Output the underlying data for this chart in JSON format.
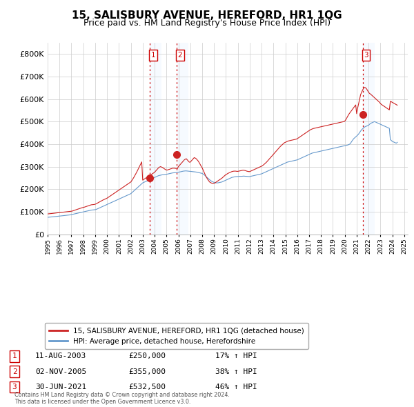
{
  "title": "15, SALISBURY AVENUE, HEREFORD, HR1 1QG",
  "subtitle": "Price paid vs. HM Land Registry's House Price Index (HPI)",
  "ylim": [
    0,
    850000
  ],
  "yticks": [
    0,
    100000,
    200000,
    300000,
    400000,
    500000,
    600000,
    700000,
    800000
  ],
  "ytick_labels": [
    "£0",
    "£100K",
    "£200K",
    "£300K",
    "£400K",
    "£500K",
    "£600K",
    "£700K",
    "£800K"
  ],
  "sale_year_nums": [
    2003.6,
    2005.83,
    2021.5
  ],
  "sale_prices": [
    250000,
    355000,
    532500
  ],
  "sale_labels": [
    "1",
    "2",
    "3"
  ],
  "vline_color": "#cc0000",
  "vline_shade_color": "#ddeeff",
  "red_line_color": "#cc2222",
  "blue_line_color": "#6699cc",
  "legend_label_red": "15, SALISBURY AVENUE, HEREFORD, HR1 1QG (detached house)",
  "legend_label_blue": "HPI: Average price, detached house, Herefordshire",
  "table_entries": [
    {
      "num": "1",
      "date": "11-AUG-2003",
      "price": "£250,000",
      "change": "17% ↑ HPI"
    },
    {
      "num": "2",
      "date": "02-NOV-2005",
      "price": "£355,000",
      "change": "38% ↑ HPI"
    },
    {
      "num": "3",
      "date": "30-JUN-2021",
      "price": "£532,500",
      "change": "46% ↑ HPI"
    }
  ],
  "footnote": "Contains HM Land Registry data © Crown copyright and database right 2024.\nThis data is licensed under the Open Government Licence v3.0.",
  "background_color": "#ffffff",
  "grid_color": "#cccccc",
  "hpi_years": [
    1995.0,
    1995.083,
    1995.167,
    1995.25,
    1995.333,
    1995.417,
    1995.5,
    1995.583,
    1995.667,
    1995.75,
    1995.833,
    1995.917,
    1996.0,
    1996.083,
    1996.167,
    1996.25,
    1996.333,
    1996.417,
    1996.5,
    1996.583,
    1996.667,
    1996.75,
    1996.833,
    1996.917,
    1997.0,
    1997.083,
    1997.167,
    1997.25,
    1997.333,
    1997.417,
    1997.5,
    1997.583,
    1997.667,
    1997.75,
    1997.833,
    1997.917,
    1998.0,
    1998.083,
    1998.167,
    1998.25,
    1998.333,
    1998.417,
    1998.5,
    1998.583,
    1998.667,
    1998.75,
    1998.833,
    1998.917,
    1999.0,
    1999.083,
    1999.167,
    1999.25,
    1999.333,
    1999.417,
    1999.5,
    1999.583,
    1999.667,
    1999.75,
    1999.833,
    1999.917,
    2000.0,
    2000.083,
    2000.167,
    2000.25,
    2000.333,
    2000.417,
    2000.5,
    2000.583,
    2000.667,
    2000.75,
    2000.833,
    2000.917,
    2001.0,
    2001.083,
    2001.167,
    2001.25,
    2001.333,
    2001.417,
    2001.5,
    2001.583,
    2001.667,
    2001.75,
    2001.833,
    2001.917,
    2002.0,
    2002.083,
    2002.167,
    2002.25,
    2002.333,
    2002.417,
    2002.5,
    2002.583,
    2002.667,
    2002.75,
    2002.833,
    2002.917,
    2003.0,
    2003.083,
    2003.167,
    2003.25,
    2003.333,
    2003.417,
    2003.5,
    2003.583,
    2003.667,
    2003.75,
    2003.833,
    2003.917,
    2004.0,
    2004.083,
    2004.167,
    2004.25,
    2004.333,
    2004.417,
    2004.5,
    2004.583,
    2004.667,
    2004.75,
    2004.833,
    2004.917,
    2005.0,
    2005.083,
    2005.167,
    2005.25,
    2005.333,
    2005.417,
    2005.5,
    2005.583,
    2005.667,
    2005.75,
    2005.833,
    2005.917,
    2006.0,
    2006.083,
    2006.167,
    2006.25,
    2006.333,
    2006.417,
    2006.5,
    2006.583,
    2006.667,
    2006.75,
    2006.833,
    2006.917,
    2007.0,
    2007.083,
    2007.167,
    2007.25,
    2007.333,
    2007.417,
    2007.5,
    2007.583,
    2007.667,
    2007.75,
    2007.833,
    2007.917,
    2008.0,
    2008.083,
    2008.167,
    2008.25,
    2008.333,
    2008.417,
    2008.5,
    2008.583,
    2008.667,
    2008.75,
    2008.833,
    2008.917,
    2009.0,
    2009.083,
    2009.167,
    2009.25,
    2009.333,
    2009.417,
    2009.5,
    2009.583,
    2009.667,
    2009.75,
    2009.833,
    2009.917,
    2010.0,
    2010.083,
    2010.167,
    2010.25,
    2010.333,
    2010.417,
    2010.5,
    2010.583,
    2010.667,
    2010.75,
    2010.833,
    2010.917,
    2011.0,
    2011.083,
    2011.167,
    2011.25,
    2011.333,
    2011.417,
    2011.5,
    2011.583,
    2011.667,
    2011.75,
    2011.833,
    2011.917,
    2012.0,
    2012.083,
    2012.167,
    2012.25,
    2012.333,
    2012.417,
    2012.5,
    2012.583,
    2012.667,
    2012.75,
    2012.833,
    2012.917,
    2013.0,
    2013.083,
    2013.167,
    2013.25,
    2013.333,
    2013.417,
    2013.5,
    2013.583,
    2013.667,
    2013.75,
    2013.833,
    2013.917,
    2014.0,
    2014.083,
    2014.167,
    2014.25,
    2014.333,
    2014.417,
    2014.5,
    2014.583,
    2014.667,
    2014.75,
    2014.833,
    2014.917,
    2015.0,
    2015.083,
    2015.167,
    2015.25,
    2015.333,
    2015.417,
    2015.5,
    2015.583,
    2015.667,
    2015.75,
    2015.833,
    2015.917,
    2016.0,
    2016.083,
    2016.167,
    2016.25,
    2016.333,
    2016.417,
    2016.5,
    2016.583,
    2016.667,
    2016.75,
    2016.833,
    2016.917,
    2017.0,
    2017.083,
    2017.167,
    2017.25,
    2017.333,
    2017.417,
    2017.5,
    2017.583,
    2017.667,
    2017.75,
    2017.833,
    2017.917,
    2018.0,
    2018.083,
    2018.167,
    2018.25,
    2018.333,
    2018.417,
    2018.5,
    2018.583,
    2018.667,
    2018.75,
    2018.833,
    2018.917,
    2019.0,
    2019.083,
    2019.167,
    2019.25,
    2019.333,
    2019.417,
    2019.5,
    2019.583,
    2019.667,
    2019.75,
    2019.833,
    2019.917,
    2020.0,
    2020.083,
    2020.167,
    2020.25,
    2020.333,
    2020.417,
    2020.5,
    2020.583,
    2020.667,
    2020.75,
    2020.833,
    2020.917,
    2021.0,
    2021.083,
    2021.167,
    2021.25,
    2021.333,
    2021.417,
    2021.5,
    2021.583,
    2021.667,
    2021.75,
    2021.833,
    2021.917,
    2022.0,
    2022.083,
    2022.167,
    2022.25,
    2022.333,
    2022.417,
    2022.5,
    2022.583,
    2022.667,
    2022.75,
    2022.833,
    2022.917,
    2023.0,
    2023.083,
    2023.167,
    2023.25,
    2023.333,
    2023.417,
    2023.5,
    2023.583,
    2023.667,
    2023.75,
    2023.833,
    2023.917,
    2024.0,
    2024.083,
    2024.167,
    2024.25,
    2024.333,
    2024.417
  ],
  "hpi_blue": [
    75000,
    75500,
    76000,
    76500,
    77000,
    77500,
    78000,
    78200,
    78500,
    79000,
    79500,
    80000,
    80500,
    81000,
    81500,
    82000,
    82500,
    83000,
    83500,
    84000,
    84500,
    85000,
    85500,
    86000,
    87000,
    88000,
    89000,
    90000,
    91000,
    92000,
    93000,
    94000,
    95000,
    96000,
    97000,
    98000,
    99000,
    100000,
    101000,
    102000,
    103000,
    104000,
    105000,
    106000,
    107000,
    107500,
    108000,
    108500,
    109000,
    110000,
    112000,
    114000,
    116000,
    118000,
    120000,
    122000,
    124000,
    126000,
    128000,
    130000,
    132000,
    134000,
    136000,
    138000,
    140000,
    142000,
    144000,
    146000,
    148000,
    150000,
    152000,
    154000,
    156000,
    158000,
    160000,
    162000,
    164000,
    166000,
    168000,
    170000,
    172000,
    174000,
    176000,
    178000,
    180000,
    184000,
    188000,
    192000,
    196000,
    200000,
    204000,
    208000,
    212000,
    216000,
    220000,
    224000,
    228000,
    230000,
    232000,
    234000,
    236000,
    238000,
    240000,
    242000,
    244000,
    246000,
    248000,
    250000,
    252000,
    254000,
    256000,
    258000,
    260000,
    261000,
    262000,
    263000,
    264000,
    264500,
    265000,
    265500,
    266000,
    267000,
    268000,
    269000,
    270000,
    271000,
    272000,
    272500,
    273000,
    273500,
    274000,
    274500,
    275000,
    276000,
    277000,
    278000,
    279000,
    280000,
    280500,
    281000,
    281000,
    280500,
    280000,
    279500,
    279000,
    278500,
    278000,
    277500,
    277000,
    276500,
    276000,
    275000,
    274000,
    273000,
    272000,
    271000,
    270000,
    267000,
    264000,
    260000,
    256000,
    252000,
    248000,
    244000,
    240000,
    237000,
    234000,
    232000,
    230000,
    229000,
    228000,
    228000,
    228000,
    229000,
    230000,
    231000,
    232000,
    234000,
    236000,
    238000,
    240000,
    242000,
    244000,
    246000,
    248000,
    250000,
    252000,
    253000,
    254000,
    255000,
    255500,
    256000,
    256000,
    256500,
    257000,
    257000,
    257000,
    257500,
    258000,
    257500,
    257000,
    257000,
    256500,
    256000,
    256000,
    257000,
    258000,
    259000,
    260000,
    261000,
    262000,
    263000,
    264000,
    265000,
    266000,
    267000,
    268000,
    270000,
    272000,
    274000,
    276000,
    278000,
    280000,
    282000,
    284000,
    286000,
    288000,
    290000,
    292000,
    294000,
    296000,
    298000,
    300000,
    302000,
    304000,
    306000,
    308000,
    310000,
    312000,
    314000,
    316000,
    318000,
    320000,
    321000,
    322000,
    323000,
    324000,
    325000,
    326000,
    327000,
    328000,
    329000,
    330000,
    332000,
    334000,
    336000,
    338000,
    340000,
    342000,
    344000,
    346000,
    348000,
    350000,
    352000,
    354000,
    356000,
    358000,
    360000,
    361000,
    362000,
    363000,
    364000,
    365000,
    366000,
    367000,
    368000,
    369000,
    370000,
    371000,
    372000,
    373000,
    374000,
    375000,
    376000,
    377000,
    378000,
    379000,
    380000,
    381000,
    382000,
    383000,
    384000,
    385000,
    386000,
    387000,
    388000,
    389000,
    390000,
    391000,
    392000,
    393000,
    394000,
    395000,
    396000,
    398000,
    400000,
    405000,
    412000,
    418000,
    424000,
    428000,
    432000,
    436000,
    440000,
    445000,
    452000,
    458000,
    464000,
    468000,
    472000,
    476000,
    478000,
    480000,
    482000,
    484000,
    488000,
    492000,
    494000,
    496000,
    498000,
    500000,
    498000,
    496000,
    494000,
    492000,
    490000,
    488000,
    486000,
    484000,
    482000,
    480000,
    478000,
    476000,
    474000,
    472000,
    470000,
    420000,
    416000,
    412000,
    410000,
    408000,
    406000,
    404000,
    408000
  ],
  "hpi_red": [
    90000,
    90500,
    91000,
    91500,
    92000,
    92500,
    93000,
    93500,
    94000,
    94500,
    95000,
    95500,
    96000,
    96500,
    97000,
    97500,
    98000,
    98500,
    99000,
    99500,
    100000,
    100500,
    101000,
    101500,
    102000,
    103000,
    104500,
    106000,
    107500,
    109000,
    110500,
    112000,
    113500,
    115000,
    116500,
    118000,
    119000,
    120000,
    121500,
    123000,
    124500,
    126000,
    127500,
    129000,
    130500,
    131000,
    131500,
    132000,
    133000,
    135000,
    137500,
    140000,
    142500,
    145000,
    147500,
    150000,
    152000,
    154000,
    156000,
    158000,
    160000,
    163000,
    166000,
    169000,
    172000,
    175000,
    178000,
    181000,
    184000,
    187000,
    190000,
    193000,
    196000,
    199000,
    202000,
    205000,
    208000,
    211000,
    214000,
    217000,
    220000,
    223000,
    226000,
    229000,
    232000,
    238000,
    245000,
    252000,
    260000,
    268000,
    276000,
    285000,
    294000,
    303000,
    312000,
    321000,
    240000,
    243000,
    246000,
    249000,
    252000,
    254000,
    257000,
    260000,
    263000,
    266000,
    269000,
    272000,
    275000,
    280000,
    285000,
    290000,
    295000,
    298000,
    300000,
    298000,
    296000,
    293000,
    290000,
    287000,
    285000,
    285000,
    287000,
    288000,
    290000,
    291000,
    293000,
    293000,
    293000,
    292000,
    292000,
    291000,
    300000,
    305000,
    310000,
    315000,
    320000,
    325000,
    330000,
    333000,
    335000,
    330000,
    325000,
    320000,
    320000,
    325000,
    330000,
    335000,
    340000,
    338000,
    335000,
    330000,
    325000,
    318000,
    310000,
    302000,
    295000,
    285000,
    275000,
    265000,
    255000,
    248000,
    241000,
    235000,
    230000,
    228000,
    226000,
    225000,
    226000,
    228000,
    231000,
    234000,
    237000,
    240000,
    243000,
    246000,
    249000,
    253000,
    257000,
    261000,
    265000,
    267000,
    270000,
    272000,
    274000,
    276000,
    278000,
    279000,
    280000,
    280000,
    280000,
    279000,
    279000,
    280000,
    281000,
    282000,
    283000,
    284000,
    284000,
    283000,
    282000,
    280000,
    279000,
    278000,
    278000,
    280000,
    282000,
    284000,
    286000,
    288000,
    290000,
    292000,
    294000,
    296000,
    298000,
    300000,
    302000,
    305000,
    308000,
    312000,
    316000,
    320000,
    325000,
    330000,
    335000,
    340000,
    345000,
    350000,
    355000,
    360000,
    365000,
    370000,
    375000,
    380000,
    385000,
    390000,
    394000,
    398000,
    402000,
    406000,
    408000,
    410000,
    412000,
    414000,
    415000,
    416000,
    417000,
    418000,
    419000,
    420000,
    421000,
    422000,
    424000,
    427000,
    430000,
    433000,
    436000,
    439000,
    442000,
    445000,
    448000,
    451000,
    454000,
    457000,
    460000,
    463000,
    465000,
    467000,
    469000,
    470000,
    471000,
    472000,
    473000,
    474000,
    475000,
    476000,
    477000,
    478000,
    479000,
    480000,
    481000,
    482000,
    483000,
    484000,
    485000,
    486000,
    487000,
    488000,
    489000,
    490000,
    491000,
    492000,
    493000,
    494000,
    495000,
    496000,
    497000,
    498000,
    499000,
    500000,
    502000,
    508000,
    516000,
    524000,
    532000,
    538000,
    544000,
    550000,
    556000,
    562000,
    568000,
    574000,
    535000,
    560000,
    580000,
    600000,
    620000,
    630000,
    640000,
    648000,
    652000,
    650000,
    645000,
    638000,
    630000,
    625000,
    622000,
    618000,
    614000,
    610000,
    606000,
    602000,
    598000,
    594000,
    590000,
    586000,
    580000,
    576000,
    573000,
    570000,
    567000,
    564000,
    561000,
    558000,
    555000,
    552000,
    590000,
    588000,
    585000,
    583000,
    580000,
    578000,
    575000,
    573000
  ]
}
